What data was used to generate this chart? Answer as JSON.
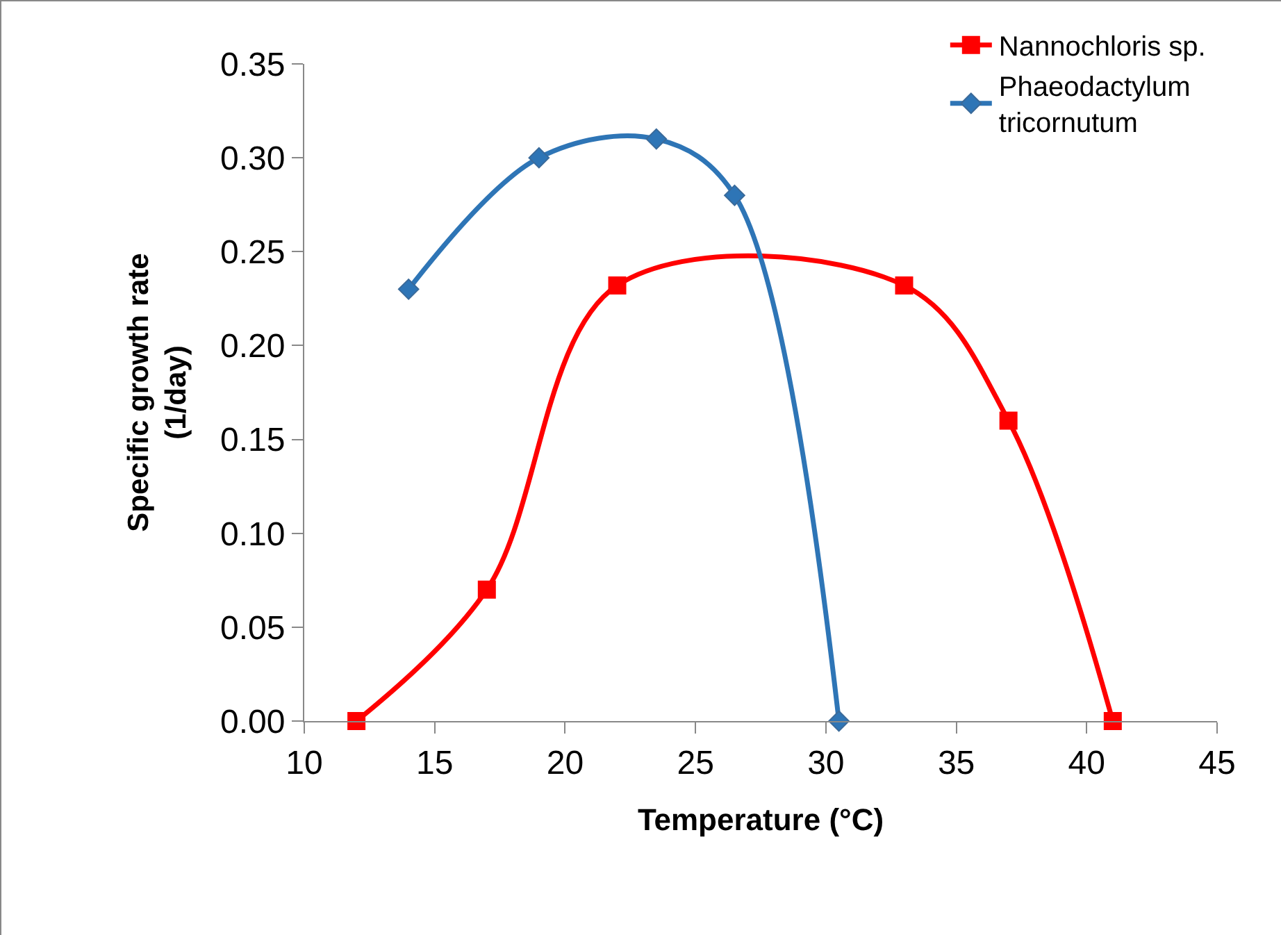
{
  "chart_data": {
    "type": "line",
    "xlabel": "Temperature (°C)",
    "ylabel": "Specific growth rate (1/day)",
    "xlim": [
      10,
      45
    ],
    "xticks": [
      10,
      15,
      20,
      25,
      30,
      35,
      40,
      45
    ],
    "ylim": [
      0,
      0.35
    ],
    "yticks": [
      {
        "value": 0,
        "label": "0.00"
      },
      {
        "value": 0.05,
        "label": "0.05"
      },
      {
        "value": 0.1,
        "label": "0.10"
      },
      {
        "value": 0.15,
        "label": "0.15"
      },
      {
        "value": 0.2,
        "label": "0.20"
      },
      {
        "value": 0.25,
        "label": "0.25"
      },
      {
        "value": 0.3,
        "label": "0.30"
      },
      {
        "value": 0.35,
        "label": "0.35"
      }
    ],
    "grid": false,
    "legend": "top right",
    "line_style": "solid",
    "series": [
      {
        "name": "Nannochloris sp.",
        "color": "#ff0000",
        "marker": "square",
        "x": [
          12,
          17,
          22,
          33,
          37,
          41
        ],
        "values": [
          0,
          0.07,
          0.232,
          0.232,
          0.16,
          0
        ]
      },
      {
        "name": "Phaeodactylum tricornutum",
        "color": "#2e75b6",
        "marker": "diamond",
        "x": [
          14,
          19,
          23.5,
          26.5,
          30.5
        ],
        "values": [
          0.23,
          0.3,
          0.31,
          0.28,
          0
        ]
      }
    ]
  }
}
